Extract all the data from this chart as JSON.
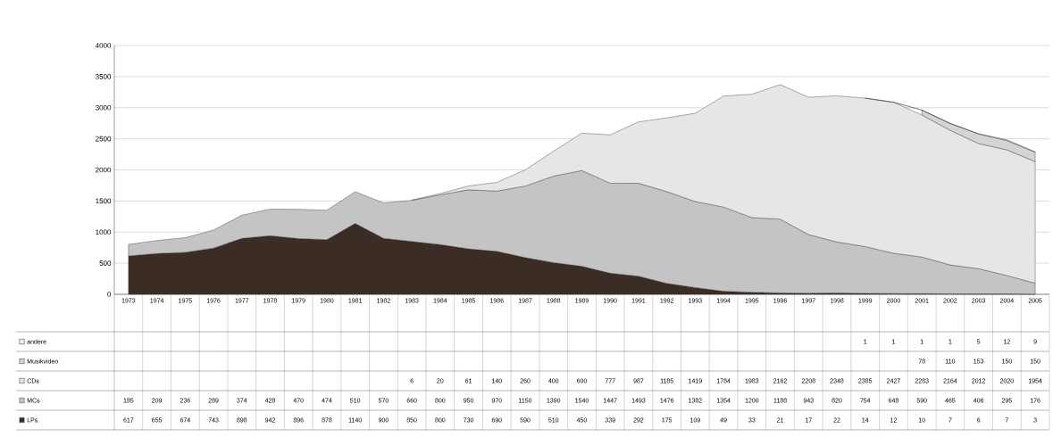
{
  "chart_data": {
    "type": "area",
    "stacked": true,
    "categories": [
      "1973",
      "1974",
      "1975",
      "1976",
      "1977",
      "1978",
      "1979",
      "1980",
      "1981",
      "1982",
      "1983",
      "1984",
      "1985",
      "1986",
      "1987",
      "1988",
      "1989",
      "1990",
      "1991",
      "1992",
      "1993",
      "1994",
      "1995",
      "1996",
      "1997",
      "1998",
      "1999",
      "2000",
      "2001",
      "2002",
      "2003",
      "2004",
      "2005"
    ],
    "series": [
      {
        "name": "LPs",
        "color": "#3b2c25",
        "values": [
          617,
          655,
          674,
          743,
          898,
          942,
          896,
          878,
          1140,
          900,
          850,
          800,
          730,
          690,
          590,
          510,
          450,
          339,
          292,
          175,
          109,
          49,
          33,
          21,
          17,
          22,
          14,
          12,
          10,
          7,
          6,
          7,
          3
        ]
      },
      {
        "name": "MCs",
        "color": "#c4c4c4",
        "values": [
          185,
          209,
          236,
          289,
          374,
          428,
          470,
          474,
          510,
          570,
          660,
          800,
          950,
          970,
          1150,
          1390,
          1540,
          1447,
          1493,
          1476,
          1382,
          1354,
          1200,
          1188,
          943,
          820,
          754,
          648,
          590,
          465,
          406,
          295,
          176
        ]
      },
      {
        "name": "CDs",
        "color": "#e6e6e6",
        "values": [
          null,
          null,
          null,
          null,
          null,
          null,
          null,
          null,
          null,
          null,
          6,
          20,
          61,
          140,
          260,
          400,
          600,
          777,
          987,
          1185,
          1419,
          1784,
          1983,
          2162,
          2208,
          2348,
          2385,
          2427,
          2283,
          2164,
          2012,
          2020,
          1954
        ]
      },
      {
        "name": "Musikvideo",
        "color": "#d4d4d4",
        "values": [
          null,
          null,
          null,
          null,
          null,
          null,
          null,
          null,
          null,
          null,
          null,
          null,
          null,
          null,
          null,
          null,
          null,
          null,
          null,
          null,
          null,
          null,
          null,
          null,
          null,
          null,
          null,
          null,
          78,
          110,
          153,
          150,
          150
        ]
      },
      {
        "name": "andere",
        "color": "#eeeeee",
        "values": [
          null,
          null,
          null,
          null,
          null,
          null,
          null,
          null,
          null,
          null,
          null,
          null,
          null,
          null,
          null,
          null,
          null,
          null,
          null,
          null,
          null,
          null,
          null,
          null,
          null,
          null,
          1,
          1,
          1,
          1,
          5,
          12,
          9
        ]
      }
    ],
    "ylim": [
      0,
      4000
    ],
    "yticks": [
      0,
      500,
      1000,
      1500,
      2000,
      2500,
      3000,
      3500,
      4000
    ],
    "grid": "y",
    "legend": "bottom",
    "data_labels": true
  }
}
